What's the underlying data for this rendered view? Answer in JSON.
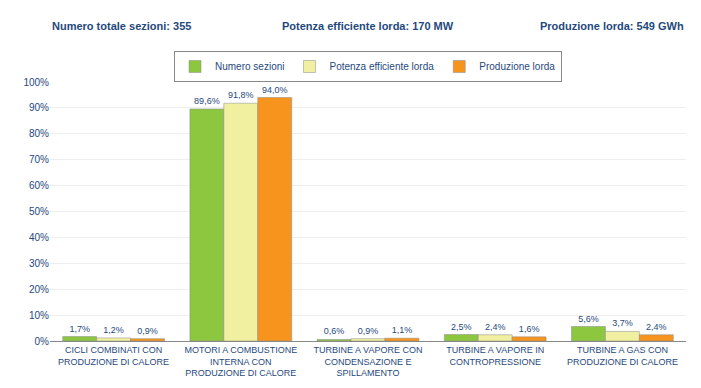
{
  "chart_data": {
    "type": "bar",
    "annotations": [
      "Numero totale sezioni: 355",
      "Potenza efficiente lorda: 170 MW",
      "Produzione lorda: 549 GWh"
    ],
    "categories": [
      "CICLI COMBINATI CON\nPRODUZIONE DI CALORE",
      "MOTORI A COMBUSTIONE\nINTERNA CON\nPRODUZIONE DI CALORE",
      "TURBINE A VAPORE CON\nCONDENSAZIONE E\nSPILLAMENTO",
      "TURBINE A VAPORE IN\nCONTROPRESSIONE",
      "TURBINE A GAS CON\nPRODUZIONE DI CALORE"
    ],
    "series": [
      {
        "name": "Numero sezioni",
        "color": "#8DC63F",
        "values": [
          1.7,
          89.6,
          0.6,
          2.5,
          5.6
        ],
        "value_labels": [
          "1,7%",
          "89,6%",
          "0,6%",
          "2,5%",
          "5,6%"
        ]
      },
      {
        "name": "Potenza efficiente lorda",
        "color": "#F0F0A0",
        "values": [
          1.2,
          91.8,
          0.9,
          2.4,
          3.7
        ],
        "value_labels": [
          "1,2%",
          "91,8%",
          "0,9%",
          "2,4%",
          "3,7%"
        ]
      },
      {
        "name": "Produzione lorda",
        "color": "#F7941D",
        "values": [
          0.9,
          94.0,
          1.1,
          1.6,
          2.4
        ],
        "value_labels": [
          "0,9%",
          "94,0%",
          "1,1%",
          "1,6%",
          "2,4%"
        ]
      }
    ],
    "ylim": [
      0,
      100
    ],
    "yticks": [
      {
        "value": 0,
        "label": "0%"
      },
      {
        "value": 10,
        "label": "10%"
      },
      {
        "value": 20,
        "label": "20%"
      },
      {
        "value": 30,
        "label": "30%"
      },
      {
        "value": 40,
        "label": "40%"
      },
      {
        "value": 50,
        "label": "50%"
      },
      {
        "value": 60,
        "label": "60%"
      },
      {
        "value": 70,
        "label": "70%"
      },
      {
        "value": 80,
        "label": "80%"
      },
      {
        "value": 90,
        "label": "90%"
      },
      {
        "value": 100,
        "label": "100%"
      }
    ],
    "grid": true,
    "legend": "top",
    "data_labels": true
  }
}
